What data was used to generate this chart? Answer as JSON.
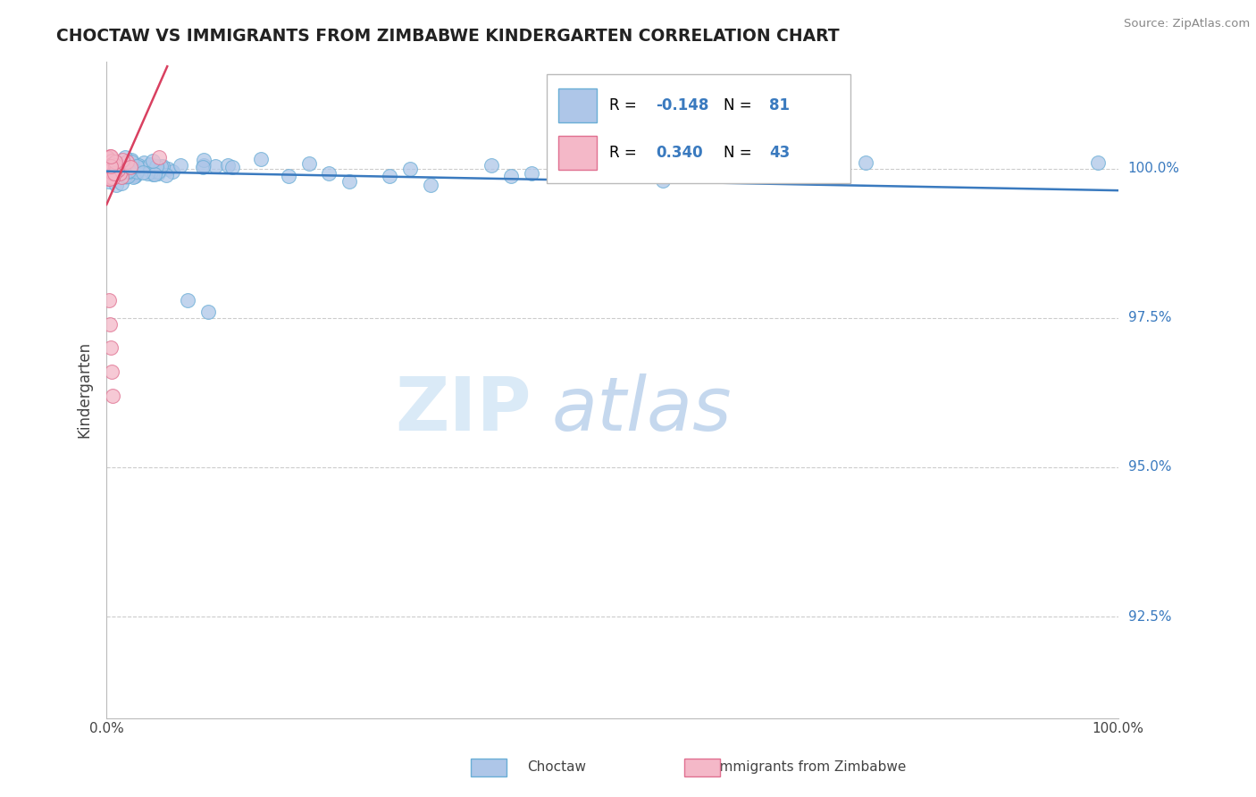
{
  "title": "CHOCTAW VS IMMIGRANTS FROM ZIMBABWE KINDERGARTEN CORRELATION CHART",
  "source_text": "Source: ZipAtlas.com",
  "ylabel": "Kindergarten",
  "xlim": [
    0.0,
    1.0
  ],
  "ylim": [
    0.908,
    1.018
  ],
  "yticks": [
    0.925,
    0.95,
    0.975,
    1.0
  ],
  "ytick_labels": [
    "92.5%",
    "95.0%",
    "97.5%",
    "100.0%"
  ],
  "xtick_labels": [
    "0.0%",
    "100.0%"
  ],
  "blue_R": -0.148,
  "blue_N": 81,
  "pink_R": 0.34,
  "pink_N": 43,
  "blue_color": "#aec6e8",
  "pink_color": "#f4b8c8",
  "blue_edge_color": "#6aaed6",
  "pink_edge_color": "#e07090",
  "trend_blue_color": "#3a7abf",
  "trend_pink_color": "#d94060",
  "blue_label": "Choctaw",
  "pink_label": "Immigrants from Zimbabwe",
  "value_color": "#3a7abf",
  "grid_color": "#cccccc",
  "title_color": "#222222",
  "ylabel_color": "#444444",
  "source_color": "#888888",
  "watermark_zip_color": "#daeaf7",
  "watermark_atlas_color": "#c5d8ee"
}
